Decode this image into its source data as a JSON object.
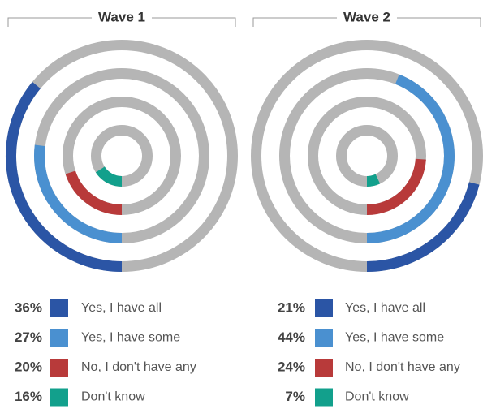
{
  "chart_data": [
    {
      "type": "radial_bar",
      "title": "Wave 1",
      "categories": [
        "Yes, I have all",
        "Yes, I have some",
        "No, I don't have any",
        "Don't know"
      ],
      "values": [
        36,
        27,
        20,
        16
      ],
      "value_labels": [
        "36%",
        "27%",
        "20%",
        "16%"
      ],
      "colors": [
        "#2b55a5",
        "#4a90d0",
        "#b83a3a",
        "#12a08c"
      ],
      "track_color": "#b5b5b5",
      "ylim": [
        0,
        100
      ],
      "direction": "clockwise"
    },
    {
      "type": "radial_bar",
      "title": "Wave 2",
      "categories": [
        "Yes, I have all",
        "Yes, I have some",
        "No, I don't have any",
        "Don't know"
      ],
      "values": [
        21,
        44,
        24,
        7
      ],
      "value_labels": [
        "21%",
        "44%",
        "24%",
        "7%"
      ],
      "colors": [
        "#2b55a5",
        "#4a90d0",
        "#b83a3a",
        "#12a08c"
      ],
      "track_color": "#b5b5b5",
      "ylim": [
        0,
        100
      ],
      "direction": "counterclockwise"
    }
  ]
}
